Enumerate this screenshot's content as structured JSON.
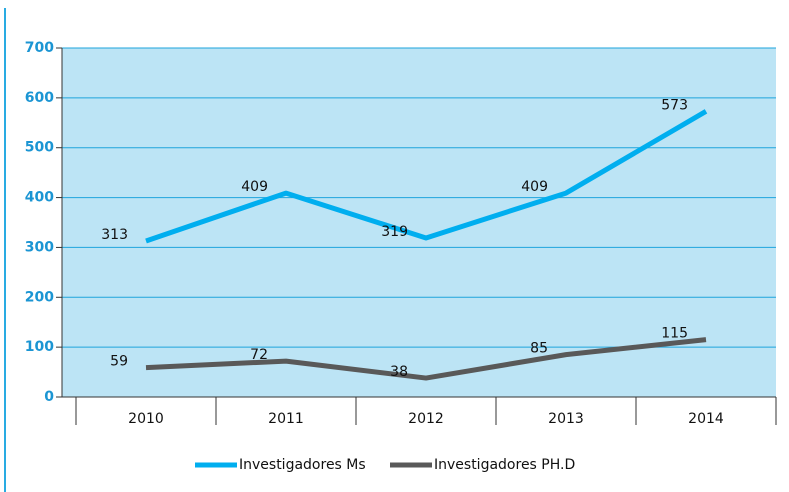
{
  "chart_data": {
    "type": "line",
    "categories": [
      "2010",
      "2011",
      "2012",
      "2013",
      "2014"
    ],
    "series": [
      {
        "name": "Investigadores Ms",
        "color": "#00aeef",
        "values": [
          313,
          409,
          319,
          409,
          573
        ]
      },
      {
        "name": "Investigadores PH.D",
        "color": "#595959",
        "values": [
          59,
          72,
          38,
          85,
          115
        ]
      }
    ],
    "ylim": [
      0,
      700
    ],
    "yticks": [
      0,
      100,
      200,
      300,
      400,
      500,
      600,
      700
    ],
    "grid": true,
    "legend": "bottom",
    "background": "#bce4f5"
  }
}
